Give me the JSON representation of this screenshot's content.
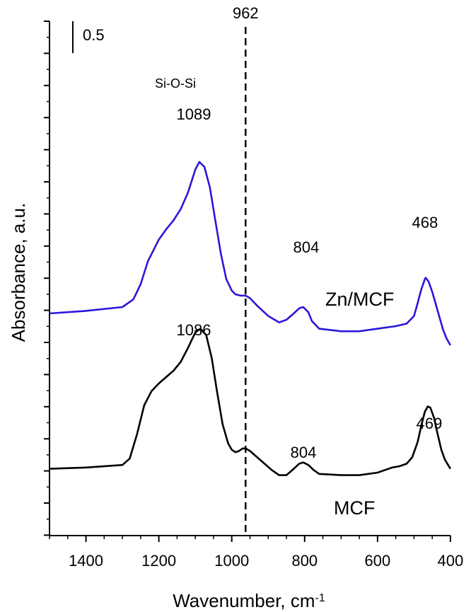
{
  "chart_data": {
    "type": "line",
    "xlabel": "Wavenumber, cm",
    "xlabel_superscript": "-1",
    "ylabel": "Absorbance, a.u.",
    "xlim": [
      1500,
      400
    ],
    "x_reversed": true,
    "xticks": [
      1400,
      1200,
      1000,
      800,
      600,
      400
    ],
    "y_scale_bar_label": "0.5",
    "y_scale_bar_value": 0.5,
    "y_tick_labels_shown": false,
    "grid": false,
    "reference_line": {
      "x": 962,
      "label": "962",
      "style": "dashed"
    },
    "series": [
      {
        "name": "Zn/MCF",
        "color": "#2b17d9",
        "x": [
          1500,
          1400,
          1300,
          1270,
          1250,
          1230,
          1200,
          1180,
          1160,
          1140,
          1120,
          1100,
          1089,
          1075,
          1060,
          1045,
          1030,
          1015,
          1000,
          990,
          975,
          962,
          950,
          930,
          900,
          870,
          850,
          830,
          815,
          804,
          790,
          780,
          760,
          700,
          650,
          600,
          550,
          520,
          500,
          490,
          480,
          470,
          468,
          460,
          450,
          440,
          430,
          420,
          410,
          400
        ],
        "y": [
          1.65,
          1.67,
          1.7,
          1.76,
          1.88,
          2.06,
          2.23,
          2.31,
          2.38,
          2.47,
          2.6,
          2.78,
          2.84,
          2.8,
          2.64,
          2.38,
          2.12,
          1.92,
          1.83,
          1.8,
          1.79,
          1.79,
          1.77,
          1.71,
          1.63,
          1.58,
          1.6,
          1.65,
          1.69,
          1.7,
          1.66,
          1.59,
          1.53,
          1.51,
          1.51,
          1.53,
          1.55,
          1.57,
          1.63,
          1.73,
          1.84,
          1.92,
          1.93,
          1.9,
          1.82,
          1.72,
          1.62,
          1.52,
          1.45,
          1.4
        ]
      },
      {
        "name": "MCF",
        "color": "#000000",
        "x": [
          1500,
          1400,
          1300,
          1280,
          1260,
          1240,
          1220,
          1200,
          1180,
          1160,
          1140,
          1120,
          1100,
          1086,
          1070,
          1055,
          1040,
          1025,
          1010,
          1000,
          990,
          980,
          970,
          962,
          950,
          930,
          910,
          890,
          870,
          850,
          830,
          815,
          804,
          790,
          775,
          760,
          700,
          650,
          600,
          560,
          540,
          520,
          505,
          490,
          480,
          470,
          462,
          455,
          445,
          435,
          425,
          415,
          400
        ],
        "y": [
          0.43,
          0.44,
          0.46,
          0.51,
          0.7,
          0.93,
          1.04,
          1.1,
          1.15,
          1.2,
          1.27,
          1.38,
          1.5,
          1.53,
          1.48,
          1.3,
          1.03,
          0.78,
          0.63,
          0.58,
          0.56,
          0.57,
          0.59,
          0.59,
          0.57,
          0.52,
          0.47,
          0.42,
          0.38,
          0.38,
          0.43,
          0.47,
          0.48,
          0.46,
          0.42,
          0.39,
          0.38,
          0.38,
          0.4,
          0.44,
          0.45,
          0.47,
          0.52,
          0.64,
          0.77,
          0.88,
          0.92,
          0.91,
          0.83,
          0.7,
          0.58,
          0.5,
          0.43
        ]
      }
    ],
    "annotations": [
      {
        "text": "Si-O-Si"
      },
      {
        "text": "1089",
        "series": "Zn/MCF",
        "x": 1089
      },
      {
        "text": "804",
        "series": "Zn/MCF",
        "x": 804
      },
      {
        "text": "468",
        "series": "Zn/MCF",
        "x": 468
      },
      {
        "text": "Zn/MCF",
        "series": "Zn/MCF"
      },
      {
        "text": "1086",
        "series": "MCF",
        "x": 1086
      },
      {
        "text": "804",
        "series": "MCF",
        "x": 804
      },
      {
        "text": "469",
        "series": "MCF",
        "x": 469
      },
      {
        "text": "MCF",
        "series": "MCF"
      }
    ]
  }
}
